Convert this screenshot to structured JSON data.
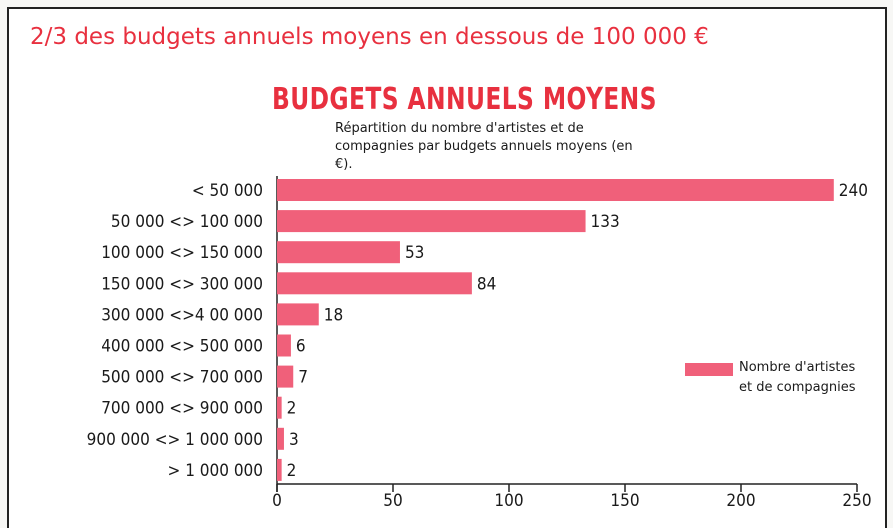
{
  "chart_data": {
    "type": "bar",
    "orientation": "horizontal",
    "headline": "2/3 des budgets annuels moyens en dessous de 100 000 €",
    "title": "BUDGETS ANNUELS MOYENS",
    "subtitle": "Répartition du nombre d'artistes et de compagnies par budgets annuels moyens (en €).",
    "categories": [
      "< 50 000",
      "50 000 <> 100 000",
      "100 000 <> 150 000",
      "150 000 <> 300 000",
      "300 000 <>4 00 000",
      "400 000 <> 500 000",
      "500 000 <> 700 000",
      "700 000 <> 900 000",
      "900 000 <> 1 000 000",
      "> 1 000 000"
    ],
    "series": [
      {
        "name": "Nombre d'artistes et de compagnies",
        "color": "#f0607a",
        "values": [
          240,
          133,
          53,
          84,
          18,
          6,
          7,
          2,
          3,
          2
        ]
      }
    ],
    "xlim": [
      0,
      250
    ],
    "xticks": [
      0,
      50,
      100,
      150,
      200,
      250
    ],
    "grid": false,
    "legend": "right"
  }
}
